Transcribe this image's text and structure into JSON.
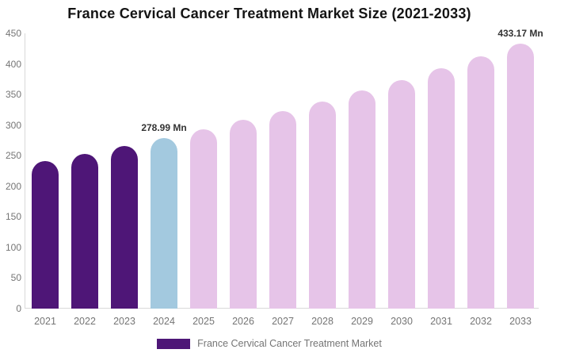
{
  "title": "France Cervical Cancer Treatment Market Size (2021-2033)",
  "chart_data": {
    "type": "bar",
    "title": "France Cervical Cancer Treatment Market Size (2021-2033)",
    "xlabel": "",
    "ylabel": "",
    "categories": [
      "2021",
      "2022",
      "2023",
      "2024",
      "2025",
      "2026",
      "2027",
      "2028",
      "2029",
      "2030",
      "2031",
      "2032",
      "2033"
    ],
    "values": [
      241,
      253,
      266,
      278.99,
      293,
      308,
      323,
      339,
      356,
      374,
      393,
      413,
      433.17
    ],
    "bar_colors": [
      "#4E1677",
      "#4E1677",
      "#4E1677",
      "#A3C9DF",
      "#E6C4E8",
      "#E6C4E8",
      "#E6C4E8",
      "#E6C4E8",
      "#E6C4E8",
      "#E6C4E8",
      "#E6C4E8",
      "#E6C4E8",
      "#E6C4E8"
    ],
    "annotations": [
      {
        "category": "2024",
        "text": "278.99 Mn"
      },
      {
        "category": "2033",
        "text": "433.17 Mn"
      }
    ],
    "ylim": [
      0,
      450
    ],
    "yticks": [
      0,
      50,
      100,
      150,
      200,
      250,
      300,
      350,
      400,
      450
    ],
    "grid": false,
    "legend_position": "bottom"
  },
  "legend": {
    "entries": [
      {
        "label": "France Cervical Cancer Treatment Market",
        "color": "#4E1677"
      }
    ]
  },
  "colors": {
    "historical_bar": "#4E1677",
    "base_year_bar": "#A3C9DF",
    "forecast_bar": "#E6C4E8",
    "axis_line": "#D9D9D9",
    "tick_text": "#757575",
    "title_text": "#141414",
    "annotation_text": "#333333",
    "background": "#FFFFFF"
  }
}
